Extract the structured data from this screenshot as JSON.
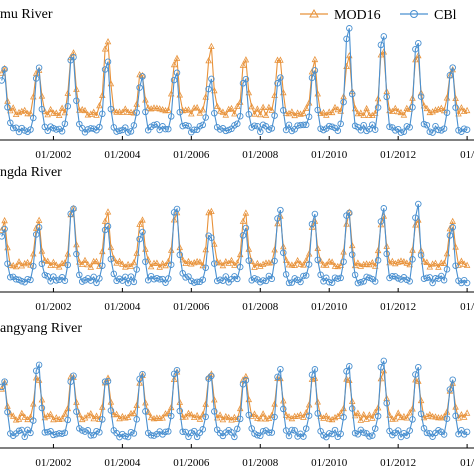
{
  "figure": {
    "legend": {
      "placement": "top-right",
      "items": [
        {
          "name": "MOD16",
          "color": "#E8923A",
          "marker": "triangle"
        },
        {
          "name": "CBl",
          "color": "#4A90D0",
          "marker": "circle"
        }
      ]
    }
  },
  "chart_data": [
    {
      "type": "line",
      "title": "mu River",
      "xlabel": "",
      "ylabel": "",
      "xlim": [
        "2000-06",
        "2013-12"
      ],
      "x_ticks": [
        "01/2002",
        "01/2004",
        "01/2006",
        "01/2008",
        "01/2010",
        "01/2012",
        "01/"
      ],
      "grid": false,
      "series": [
        {
          "name": "MOD16",
          "color": "#E8923A",
          "peaks": {
            "years": [
              2001,
              2002,
              2003,
              2004,
              2005,
              2006,
              2007,
              2008,
              2009,
              2010,
              2011,
              2012,
              2013
            ],
            "values": [
              0.62,
              0.78,
              0.85,
              0.58,
              0.72,
              0.78,
              0.68,
              0.72,
              0.66,
              0.7,
              0.76,
              0.72,
              0.58
            ]
          },
          "baseline": 0.22
        },
        {
          "name": "CBl",
          "color": "#4A90D0",
          "peaks": {
            "years": [
              2001,
              2002,
              2003,
              2004,
              2005,
              2006,
              2007,
              2008,
              2009,
              2010,
              2011,
              2012,
              2013
            ],
            "values": [
              0.6,
              0.76,
              0.66,
              0.52,
              0.55,
              0.52,
              0.52,
              0.54,
              0.64,
              0.96,
              0.9,
              0.88,
              0.6
            ]
          },
          "baseline": 0.08
        }
      ]
    },
    {
      "type": "line",
      "title": "ngda River",
      "xlabel": "",
      "ylabel": "",
      "xlim": [
        "2000-06",
        "2013-12"
      ],
      "x_ticks": [
        "01/2002",
        "01/2004",
        "01/2006",
        "01/2008",
        "01/2010",
        "01/2012",
        "01/"
      ],
      "grid": false,
      "series": [
        {
          "name": "MOD16",
          "color": "#E8923A",
          "peaks": {
            "years": [
              2001,
              2002,
              2003,
              2004,
              2005,
              2006,
              2007,
              2008,
              2009,
              2010,
              2011,
              2012,
              2013
            ],
            "values": [
              0.7,
              0.82,
              0.78,
              0.72,
              0.8,
              0.82,
              0.76,
              0.74,
              0.7,
              0.76,
              0.74,
              0.72,
              0.68
            ]
          },
          "baseline": 0.25
        },
        {
          "name": "CBl",
          "color": "#4A90D0",
          "peaks": {
            "years": [
              2001,
              2002,
              2003,
              2004,
              2005,
              2006,
              2007,
              2008,
              2009,
              2010,
              2011,
              2012,
              2013
            ],
            "values": [
              0.66,
              0.84,
              0.7,
              0.62,
              0.88,
              0.58,
              0.62,
              0.86,
              0.78,
              0.84,
              0.82,
              0.86,
              0.62
            ]
          },
          "baseline": 0.1
        }
      ]
    },
    {
      "type": "line",
      "title": "angyang River",
      "xlabel": "",
      "ylabel": "",
      "xlim": [
        "2000-06",
        "2013-12"
      ],
      "x_ticks": [
        "01/2002",
        "01/2004",
        "01/2006",
        "01/2008",
        "01/2010",
        "01/2012",
        "01/"
      ],
      "grid": false,
      "series": [
        {
          "name": "MOD16",
          "color": "#E8923A",
          "peaks": {
            "years": [
              2001,
              2002,
              2003,
              2004,
              2005,
              2006,
              2007,
              2008,
              2009,
              2010,
              2011,
              2012,
              2013
            ],
            "values": [
              0.7,
              0.72,
              0.66,
              0.7,
              0.76,
              0.72,
              0.74,
              0.7,
              0.72,
              0.7,
              0.74,
              0.68,
              0.62
            ]
          },
          "baseline": 0.28
        },
        {
          "name": "CBl",
          "color": "#4A90D0",
          "peaks": {
            "years": [
              2001,
              2002,
              2003,
              2004,
              2005,
              2006,
              2007,
              2008,
              2009,
              2010,
              2011,
              2012,
              2013
            ],
            "values": [
              0.82,
              0.76,
              0.7,
              0.74,
              0.82,
              0.74,
              0.72,
              0.78,
              0.82,
              0.86,
              0.92,
              0.8,
              0.66
            ]
          },
          "baseline": 0.12
        }
      ]
    }
  ]
}
